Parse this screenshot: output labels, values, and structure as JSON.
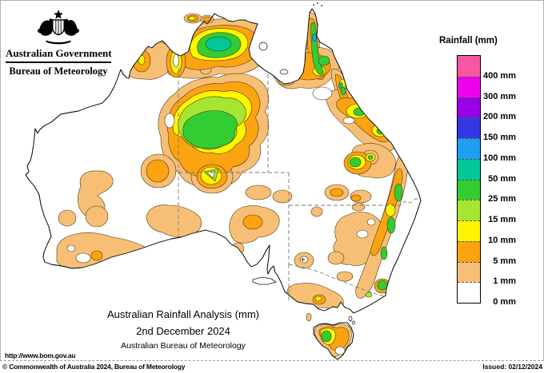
{
  "branding": {
    "government": "Australian Government",
    "bureau": "Bureau of Meteorology"
  },
  "legend": {
    "title": "Rainfall (mm)",
    "entries": [
      {
        "label": "400 mm",
        "color_key": "pink"
      },
      {
        "label": "300 mm",
        "color_key": "magenta"
      },
      {
        "label": "200 mm",
        "color_key": "purple"
      },
      {
        "label": "150 mm",
        "color_key": "blue"
      },
      {
        "label": "100 mm",
        "color_key": "light_blue"
      },
      {
        "label": "50 mm",
        "color_key": "teal"
      },
      {
        "label": "25 mm",
        "color_key": "green"
      },
      {
        "label": "15 mm",
        "color_key": "yellow_green"
      },
      {
        "label": "10 mm",
        "color_key": "yellow"
      },
      {
        "label": "5 mm",
        "color_key": "orange"
      },
      {
        "label": "1 mm",
        "color_key": "tan"
      },
      {
        "label": "0 mm",
        "color_key": "white"
      }
    ]
  },
  "caption": {
    "title": "Australian Rainfall Analysis (mm)",
    "date": "2nd December 2024",
    "subtitle": "Australian Bureau of Meteorology"
  },
  "footer": {
    "url": "http://www.bom.gov.au",
    "copyright": "© Commonwealth of Australia 2024, Bureau of Meteorology",
    "issued": "Issued: 02/12/2024"
  },
  "palette": {
    "pink": "#F659A0",
    "magenta": "#EE00EE",
    "purple": "#9900E6",
    "blue": "#3437E3",
    "light_blue": "#1F9FF0",
    "teal": "#00C896",
    "green": "#33CC33",
    "yellow_green": "#A6E632",
    "yellow": "#FFF500",
    "orange": "#FCA311",
    "tan": "#F7BF75",
    "white": "#FFFFFF"
  }
}
